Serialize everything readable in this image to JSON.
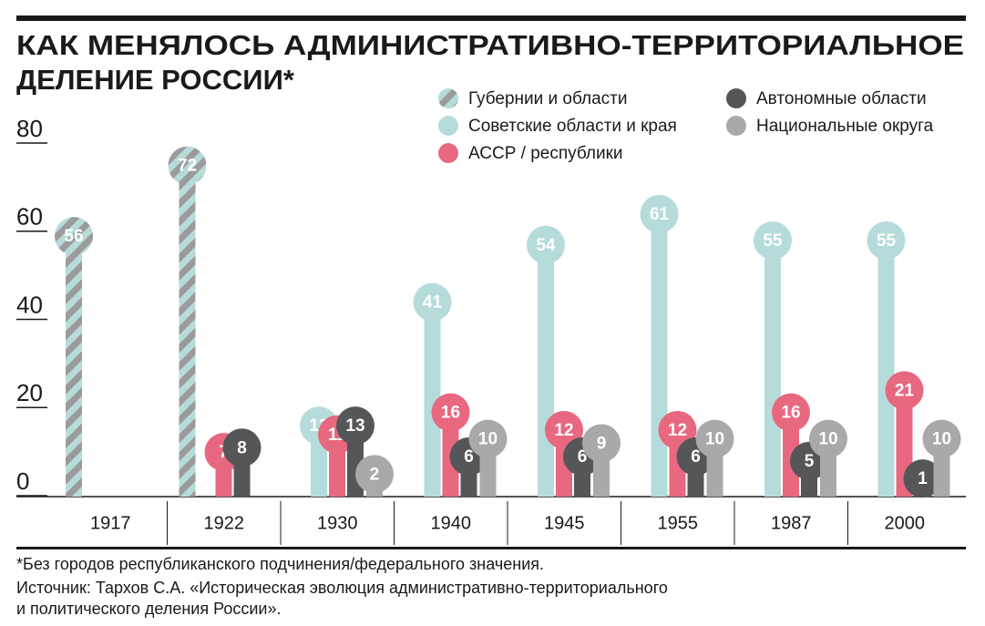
{
  "chart_data": {
    "type": "bar",
    "title": [
      "КАК МЕНЯЛОСЬ АДМИНИСТРАТИВНО-ТЕРРИТОРИАЛЬНОЕ",
      "ДЕЛЕНИЕ РОССИИ*"
    ],
    "categories": [
      "1917",
      "1922",
      "1930",
      "1940",
      "1945",
      "1955",
      "1987",
      "2000"
    ],
    "series": [
      {
        "name": "Губернии и области",
        "color": "hatch",
        "values": [
          56,
          72,
          null,
          null,
          null,
          null,
          null,
          null
        ]
      },
      {
        "name": "Советские области и края",
        "color": "#b5dcda",
        "values": [
          null,
          null,
          13,
          41,
          54,
          61,
          55,
          55
        ]
      },
      {
        "name": "АССР / республики",
        "color": "#e8687f",
        "values": [
          null,
          7,
          11,
          16,
          12,
          12,
          16,
          21
        ]
      },
      {
        "name": "Автономные области",
        "color": "#555657",
        "values": [
          null,
          8,
          13,
          6,
          6,
          6,
          5,
          1
        ]
      },
      {
        "name": "Национальные округа",
        "color": "#a9a9ab",
        "values": [
          null,
          null,
          2,
          10,
          9,
          10,
          10,
          10
        ]
      }
    ],
    "ylim": [
      0,
      80
    ],
    "yticks": [
      0,
      20,
      40,
      60,
      80
    ],
    "footnote": "*Без городов республиканского подчинения/федерального значения.",
    "source": [
      "Источник: Тархов С.А. «Историческая эволюция административно-территориального",
      "и политического деления России»."
    ]
  }
}
